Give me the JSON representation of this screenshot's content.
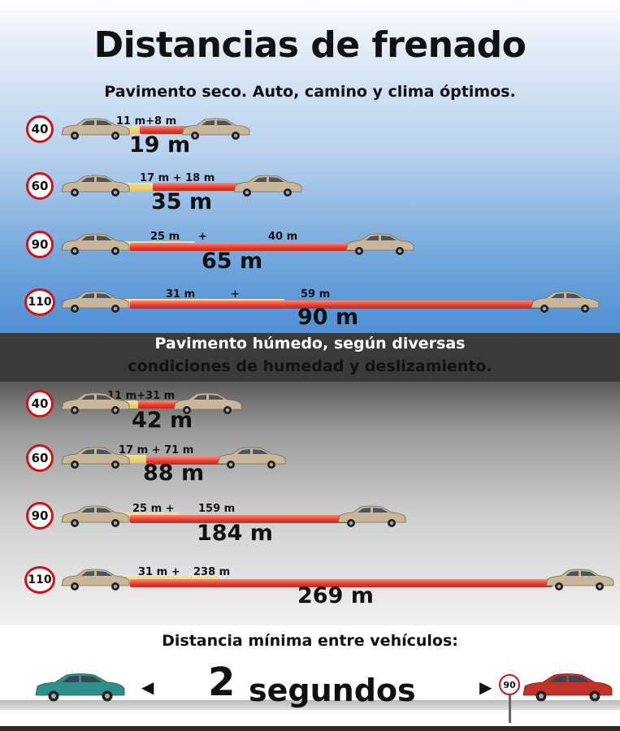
{
  "title": "Distancias de frenado",
  "dry": {
    "subtitle": "Pavimento seco. Auto, camino y clima óptimos.",
    "rows": [
      {
        "speed": "40",
        "label": "11 m+8 m",
        "total": "19 m"
      },
      {
        "speed": "60",
        "label_a": "17 m  +  18 m",
        "total": "35 m"
      },
      {
        "speed": "90",
        "label_a": "25 m",
        "plus": "+",
        "label_b": "40 m",
        "total": "65 m"
      },
      {
        "speed": "110",
        "label_a": "31 m",
        "plus": "+",
        "label_b": "59 m",
        "total": "90 m"
      }
    ]
  },
  "wet": {
    "subtitle_line1": "Pavimento húmedo, según diversas",
    "subtitle_line2": "condiciones de humedad y deslizamiento.",
    "rows": [
      {
        "speed": "40",
        "label": "11 m+31 m",
        "total": "42 m"
      },
      {
        "speed": "60",
        "label": "17 m  +  71 m",
        "total": "88 m"
      },
      {
        "speed": "90",
        "label_a": "25 m +",
        "label_b": "159 m",
        "total": "184 m"
      },
      {
        "speed": "110",
        "label_a": "31 m +",
        "label_b": "238 m",
        "total": "269 m"
      }
    ]
  },
  "gap": {
    "title": "Distancia mínima entre vehículos:",
    "number": "2",
    "word": "segundos",
    "sign": "90"
  },
  "colors": {
    "reaction_bar": "#e8c762",
    "braking_bar": "#e23a2a",
    "sign_border": "#c8161d",
    "car_beige": "#c9b79b",
    "car_teal": "#2f8f8a",
    "car_red": "#c0322a"
  }
}
